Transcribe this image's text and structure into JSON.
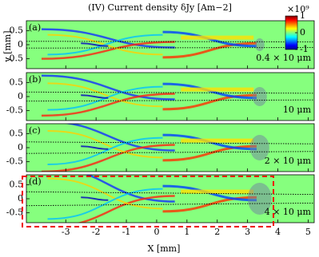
{
  "figure": {
    "title": "(IV) Current density δJy [Am−2]",
    "x_label": "X [mm]",
    "y_label": "y [mm]",
    "xlim": [
      -4.3,
      5.2
    ],
    "xticks": [
      -3,
      -2,
      -1,
      0,
      1,
      2,
      3,
      4,
      5
    ],
    "colorbar": {
      "lim": [
        -1,
        1
      ],
      "ticks": [
        1,
        0,
        -1
      ],
      "exponent_label": "×10⁹",
      "colormap": "jet"
    }
  },
  "chart_data": [
    {
      "type": "heatmap",
      "panel_label": "(a)",
      "annotation": "0.4 × 10 μm",
      "ylim": [
        -0.85,
        0.85
      ],
      "yticks": [
        0.5,
        0,
        -0.5
      ]
    },
    {
      "type": "heatmap",
      "panel_label": "(b)",
      "annotation": "10 μm",
      "ylim": [
        -0.85,
        0.85
      ],
      "yticks": [
        0.5,
        0,
        -0.5
      ]
    },
    {
      "type": "heatmap",
      "panel_label": "(c)",
      "annotation": "2 × 10 μm",
      "ylim": [
        -0.85,
        0.85
      ],
      "yticks": [
        0.5,
        0,
        -0.5
      ]
    },
    {
      "type": "heatmap",
      "panel_label": "(d)",
      "annotation": "4 × 10 μm",
      "ylim": [
        -0.85,
        0.85
      ],
      "yticks": [
        0.5,
        0,
        -0.5
      ]
    }
  ]
}
